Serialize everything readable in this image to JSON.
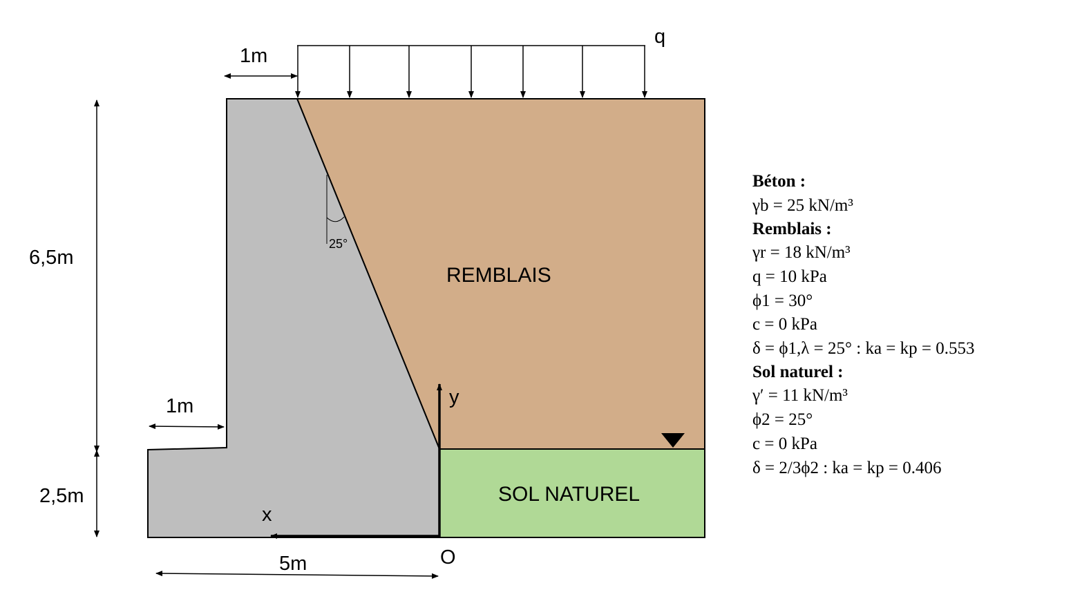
{
  "colors": {
    "beton": "#bebebe",
    "remblais": "#d2ad89",
    "sol_naturel": "#b0d996",
    "stroke": "#000000"
  },
  "load": {
    "label": "q"
  },
  "dimensions": {
    "top_offset": "1m",
    "heel_offset": "1m",
    "wall_height": "6,5m",
    "base_height": "2,5m",
    "base_width": "5m"
  },
  "angle": {
    "label": "25°"
  },
  "regions": {
    "remblais": "REMBLAIS",
    "sol_naturel": "SOL NATUREL"
  },
  "axes": {
    "y": "y",
    "x": "x",
    "origin": "O"
  },
  "water_table_icon": "triangle-down-icon",
  "params": {
    "beton_title": "Béton :",
    "beton_gamma": "γb = 25 kN/m³",
    "remblais_title": "Remblais :",
    "remblais_gamma": "γr = 18 kN/m³",
    "remblais_q": "q = 10 kPa",
    "remblais_phi": "ϕ1 = 30°",
    "remblais_c": "c = 0 kPa",
    "remblais_ka": "δ = ϕ1,λ = 25° : ka = kp = 0.553",
    "sol_title": "Sol naturel :",
    "sol_gamma": "γ′ = 11 kN/m³",
    "sol_phi": "ϕ2 = 25°",
    "sol_c": "c = 0 kPa",
    "sol_ka": "δ = 2/3ϕ2 : ka = kp = 0.406"
  }
}
